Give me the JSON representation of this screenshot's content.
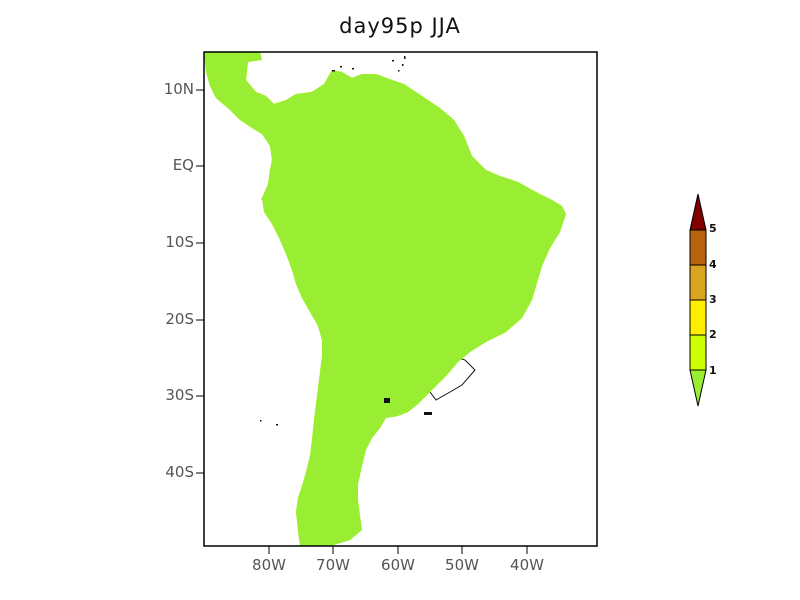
{
  "title": "day95p JJA",
  "lat_labels": [
    "10N",
    "EQ",
    "10S",
    "20S",
    "30S",
    "40S"
  ],
  "lon_labels": [
    "80W",
    "70W",
    "60W",
    "50W",
    "40W"
  ],
  "colorbar": {
    "labels": [
      "5",
      "4",
      "3",
      "2",
      "1"
    ],
    "colors": [
      "#800000",
      "#b8620e",
      "#daa520",
      "#ffee00",
      "#ccff00",
      "#99ee33"
    ]
  },
  "colors": {
    "land_base": "#99ee33",
    "band_1_2": "#ccff00",
    "band_2_3": "#ffee00",
    "band_3_4": "#daa520",
    "band_4_5": "#b8620e",
    "hatch_red": "#ff4444",
    "hatch_blue": "#33aaff"
  }
}
